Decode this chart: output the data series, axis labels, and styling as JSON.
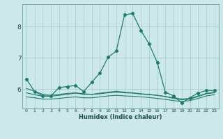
{
  "title": "",
  "xlabel": "Humidex (Indice chaleur)",
  "bg_color": "#cce8e8",
  "grid_color": "#aacece",
  "line_color": "#1e7a70",
  "xlim": [
    -0.5,
    23.5
  ],
  "ylim": [
    5.38,
    8.72
  ],
  "xticks": [
    0,
    1,
    2,
    3,
    4,
    5,
    6,
    7,
    8,
    9,
    10,
    11,
    12,
    13,
    14,
    15,
    16,
    17,
    18,
    19,
    20,
    21,
    22,
    23
  ],
  "yticks": [
    6,
    7,
    8
  ],
  "series": [
    [
      6.32,
      5.92,
      5.78,
      5.78,
      6.05,
      6.08,
      6.12,
      5.92,
      6.22,
      6.52,
      7.02,
      7.22,
      8.38,
      8.42,
      7.88,
      7.45,
      6.85,
      5.9,
      5.78,
      5.56,
      5.72,
      5.88,
      5.95,
      5.95
    ],
    [
      5.75,
      5.72,
      5.68,
      5.68,
      5.7,
      5.73,
      5.75,
      5.72,
      5.72,
      5.75,
      5.78,
      5.8,
      5.78,
      5.77,
      5.75,
      5.73,
      5.7,
      5.67,
      5.63,
      5.6,
      5.63,
      5.7,
      5.78,
      5.82
    ],
    [
      5.88,
      5.82,
      5.77,
      5.77,
      5.8,
      5.83,
      5.87,
      5.83,
      5.83,
      5.87,
      5.9,
      5.93,
      5.9,
      5.88,
      5.85,
      5.83,
      5.8,
      5.76,
      5.7,
      5.66,
      5.68,
      5.76,
      5.85,
      5.88
    ],
    [
      6.02,
      5.93,
      5.83,
      5.8,
      5.83,
      5.86,
      5.88,
      5.85,
      5.83,
      5.85,
      5.88,
      5.9,
      5.88,
      5.87,
      5.84,
      5.82,
      5.8,
      5.76,
      5.72,
      5.68,
      5.7,
      5.78,
      5.86,
      5.9
    ]
  ]
}
